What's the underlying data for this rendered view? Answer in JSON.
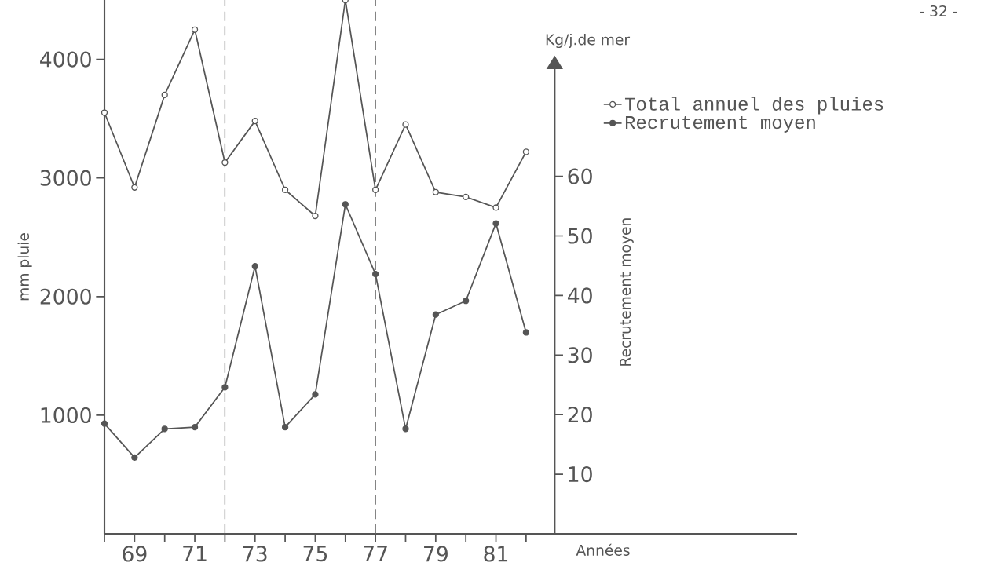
{
  "chart_data": {
    "type": "line",
    "x": [
      68,
      69,
      70,
      71,
      72,
      73,
      74,
      75,
      76,
      77,
      78,
      79,
      80,
      81,
      82
    ],
    "series": [
      {
        "name": "Total annuel des pluies",
        "color": "#555555",
        "values": [
          3550,
          2920,
          3700,
          4250,
          3130,
          3480,
          2900,
          2680,
          4500,
          2900,
          3450,
          2880,
          2840,
          2750,
          3220
        ]
      },
      {
        "name": "Recrutement moyen",
        "color": "#555555",
        "axis": "y2",
        "values": [
          18.5,
          12.8,
          17.6,
          17.9,
          24.6,
          44.9,
          17.9,
          23.4,
          55.3,
          43.6,
          17.6,
          36.8,
          39.1,
          52.1,
          33.8
        ]
      }
    ],
    "xlabel": "Années",
    "ylabel": "mm pluie",
    "y2label": "Recrutement moyen",
    "xlim": [
      68,
      91
    ],
    "xticks": [
      {
        "value": 68,
        "label": null
      },
      {
        "value": 69,
        "label": "69"
      },
      {
        "value": 70,
        "label": null
      },
      {
        "value": 71,
        "label": "71"
      },
      {
        "value": 72,
        "label": null
      },
      {
        "value": 73,
        "label": "73"
      },
      {
        "value": 74,
        "label": null
      },
      {
        "value": 75,
        "label": "75"
      },
      {
        "value": 76,
        "label": null
      },
      {
        "value": 77,
        "label": "77"
      },
      {
        "value": 78,
        "label": null
      },
      {
        "value": 79,
        "label": "79"
      },
      {
        "value": 80,
        "label": null
      },
      {
        "value": 81,
        "label": "81"
      },
      {
        "value": 82,
        "label": null
      }
    ],
    "ylim": [
      0,
      4500
    ],
    "yticks": [
      1000,
      2000,
      3000,
      4000
    ],
    "y2lim": [
      0,
      78
    ],
    "y2ticks": [
      10,
      20,
      30,
      40,
      50,
      60
    ],
    "ref_lines": [
      {
        "axis": "x",
        "value": 72,
        "line_style": "dashed",
        "color": "#666666"
      },
      {
        "axis": "x",
        "value": 77,
        "line_style": "dashed",
        "color": "#666666"
      }
    ],
    "annotations": [
      "Kg/j.de mer",
      "- 32 -"
    ],
    "legend": "top right",
    "marker": "circle",
    "line_style": "solid"
  }
}
